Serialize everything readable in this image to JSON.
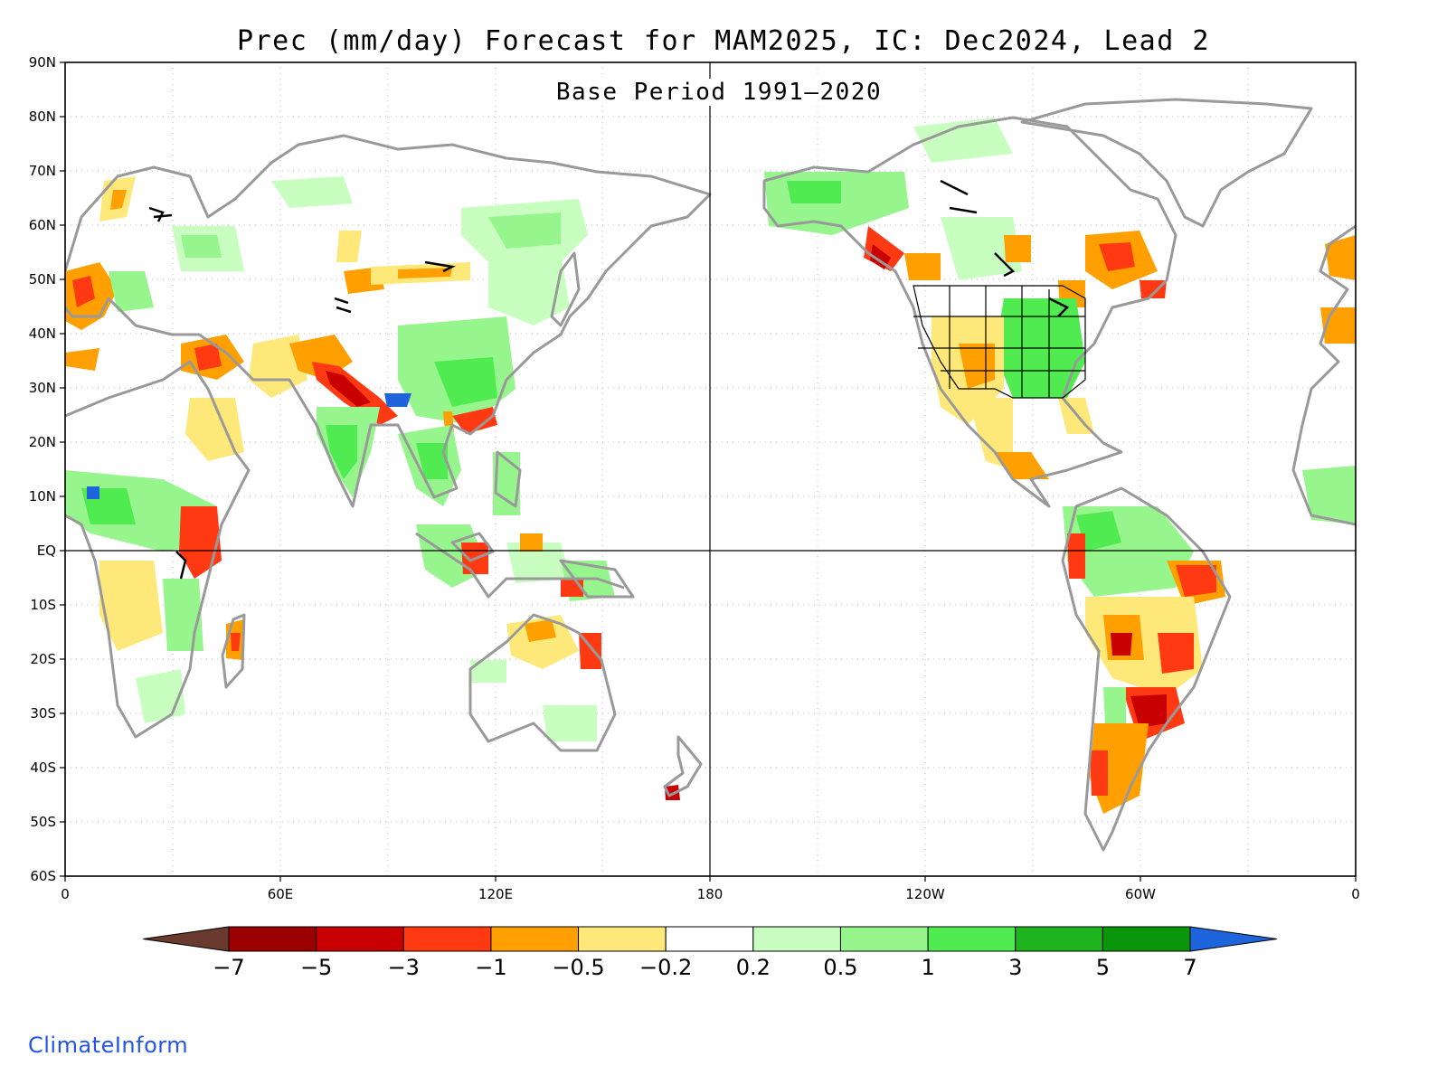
{
  "title": "Prec (mm/day) Forecast for MAM2025, IC: Dec2024, Lead 2",
  "subtitle": "Base Period 1991–2020",
  "credit": "ClimateInform",
  "y_axis_labels": [
    "90N",
    "80N",
    "70N",
    "60N",
    "50N",
    "40N",
    "30N",
    "20N",
    "10N",
    "EQ",
    "10S",
    "20S",
    "30S",
    "40S",
    "50S",
    "60S"
  ],
  "x_axis_labels": [
    "0",
    "60E",
    "120E",
    "180",
    "120W",
    "60W",
    "0"
  ],
  "colorbar": {
    "tick_labels": [
      "−7",
      "−5",
      "−3",
      "−1",
      "−0.5",
      "−0.2",
      "0.2",
      "0.5",
      "1",
      "3",
      "5",
      "7"
    ],
    "colors": [
      "#6b3a2e",
      "#9c0000",
      "#c80000",
      "#ff3a12",
      "#ffa000",
      "#ffe87a",
      "#ffffff",
      "#c8ffc0",
      "#96f58c",
      "#50eb50",
      "#1eb41e",
      "#0a960a",
      "#1e64dc"
    ]
  },
  "colors": {
    "coast": "#999999",
    "lakes": "#000000",
    "grid": "#bbbbbb"
  }
}
